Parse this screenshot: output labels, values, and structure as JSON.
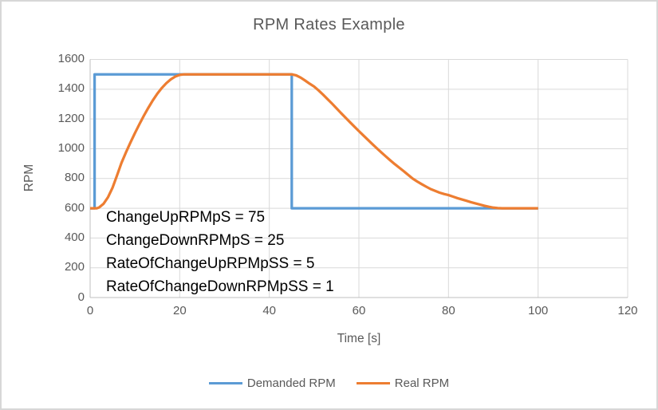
{
  "window": {
    "background": "#ffffff",
    "border_color": "#d7d7d7"
  },
  "colors": {
    "grid": "#d9d9d9",
    "axis": "#bfbfbf",
    "label_text": "#595959",
    "annotation_text": "#000000",
    "series_blue": "#5b9bd5",
    "series_orange": "#ed7d31"
  },
  "chart_data": {
    "type": "line",
    "title": "RPM Rates Example",
    "xlabel": "Time [s]",
    "ylabel": "RPM",
    "xlim": [
      0,
      120
    ],
    "ylim": [
      0,
      1600
    ],
    "x_ticks": [
      0,
      20,
      40,
      60,
      80,
      100,
      120
    ],
    "y_ticks": [
      0,
      200,
      400,
      600,
      800,
      1000,
      1200,
      1400,
      1600
    ],
    "grid": true,
    "legend_position": "bottom",
    "annotation_lines": [
      "ChangeUpRPMpS = 75",
      "ChangeDownRPMpS = 25",
      "RateOfChangeUpRPMpSS = 5",
      "RateOfChangeDownRPMpSS = 1"
    ],
    "series": [
      {
        "name": "Demanded RPM",
        "color": "#5b9bd5",
        "points": [
          [
            0,
            600
          ],
          [
            1,
            600
          ],
          [
            1,
            1500
          ],
          [
            45,
            1500
          ],
          [
            45,
            600
          ],
          [
            100,
            600
          ]
        ]
      },
      {
        "name": "Real RPM",
        "color": "#ed7d31",
        "points": [
          [
            0,
            600
          ],
          [
            1.5,
            600
          ],
          [
            2,
            605
          ],
          [
            3,
            630
          ],
          [
            4,
            675
          ],
          [
            5,
            738
          ],
          [
            6,
            820
          ],
          [
            7,
            905
          ],
          [
            8,
            975
          ],
          [
            9,
            1042
          ],
          [
            10,
            1105
          ],
          [
            11,
            1165
          ],
          [
            12,
            1222
          ],
          [
            13,
            1275
          ],
          [
            14,
            1325
          ],
          [
            15,
            1370
          ],
          [
            16,
            1408
          ],
          [
            17,
            1440
          ],
          [
            18,
            1466
          ],
          [
            19,
            1485
          ],
          [
            20,
            1496
          ],
          [
            21,
            1500
          ],
          [
            45,
            1500
          ],
          [
            46,
            1493
          ],
          [
            47,
            1478
          ],
          [
            48,
            1458
          ],
          [
            49,
            1437
          ],
          [
            50,
            1418
          ],
          [
            51,
            1392
          ],
          [
            52,
            1363
          ],
          [
            53,
            1333
          ],
          [
            54,
            1303
          ],
          [
            55,
            1272
          ],
          [
            56,
            1240
          ],
          [
            57,
            1209
          ],
          [
            58,
            1178
          ],
          [
            59,
            1148
          ],
          [
            60,
            1118
          ],
          [
            61,
            1089
          ],
          [
            62,
            1060
          ],
          [
            63,
            1031
          ],
          [
            64,
            1003
          ],
          [
            65,
            975
          ],
          [
            66,
            948
          ],
          [
            67,
            922
          ],
          [
            68,
            897
          ],
          [
            69,
            873
          ],
          [
            70,
            849
          ],
          [
            71,
            824
          ],
          [
            72,
            799
          ],
          [
            73,
            780
          ],
          [
            74,
            762
          ],
          [
            75,
            745
          ],
          [
            76,
            729
          ],
          [
            77,
            717
          ],
          [
            78,
            705
          ],
          [
            79,
            696
          ],
          [
            80,
            688
          ],
          [
            81,
            678
          ],
          [
            82,
            668
          ],
          [
            83,
            659
          ],
          [
            84,
            650
          ],
          [
            85,
            641
          ],
          [
            86,
            633
          ],
          [
            87,
            625
          ],
          [
            88,
            617
          ],
          [
            89,
            610
          ],
          [
            90,
            604
          ],
          [
            91,
            601
          ],
          [
            92,
            600
          ],
          [
            100,
            600
          ]
        ]
      }
    ]
  }
}
